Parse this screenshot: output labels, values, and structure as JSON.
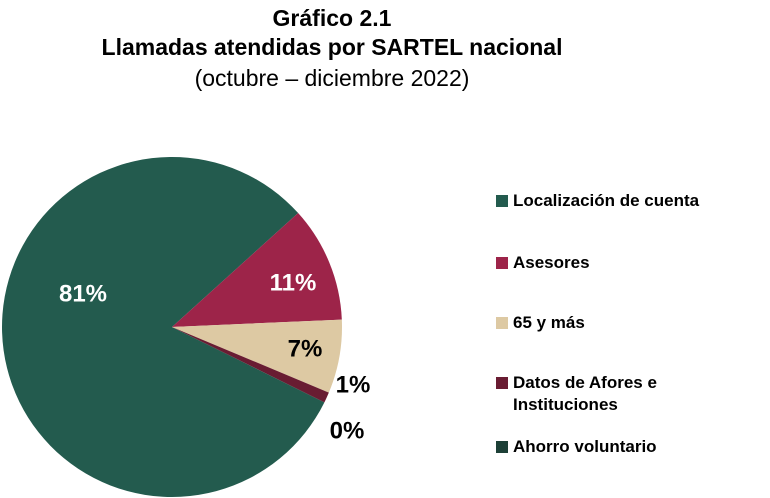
{
  "chart_data": {
    "type": "pie",
    "title": "Gráfico 2.1",
    "subtitle": "Llamadas atendidas por SARTEL nacional",
    "note": "(octubre – diciembre 2022)",
    "categories": [
      "Localización de cuenta",
      "Asesores",
      "65 y más",
      "Datos de Afores e Instituciones",
      "Ahorro voluntario"
    ],
    "values": [
      81,
      11,
      7,
      1,
      0
    ],
    "value_labels": [
      "81%",
      "11%",
      "7%",
      "1%",
      "0%"
    ],
    "colors": [
      "#235b4e",
      "#9d2449",
      "#ddc9a3",
      "#691c32",
      "#1d4037"
    ],
    "label_colors": [
      "#ffffff",
      "#ffffff",
      "#000000",
      "#000000",
      "#000000"
    ],
    "legend": "right"
  }
}
